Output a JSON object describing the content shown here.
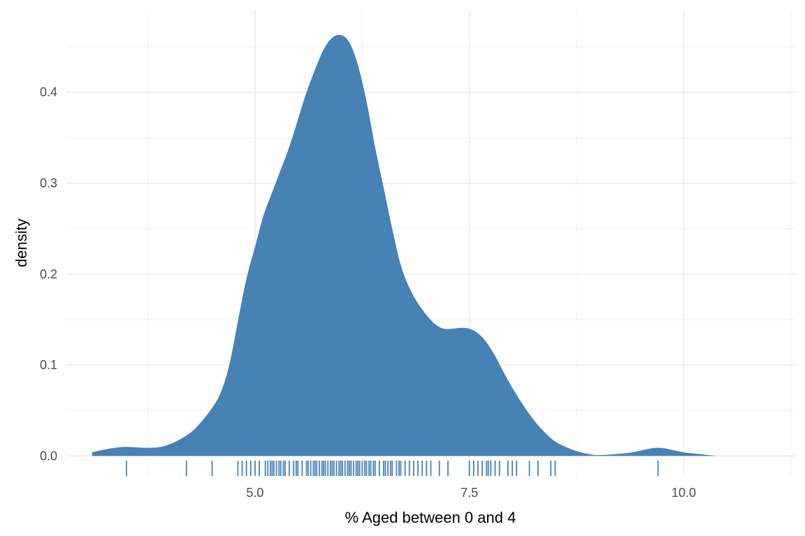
{
  "chart_data": {
    "type": "area",
    "subtype": "density-with-rug",
    "title": "",
    "xlabel": "% Aged between 0 and 4",
    "ylabel": "density",
    "xlim": [
      2.8,
      11.3
    ],
    "ylim": [
      -0.022,
      0.49
    ],
    "x_ticks": [
      {
        "value": 5.0,
        "label": "5.0"
      },
      {
        "value": 7.5,
        "label": "7.5"
      },
      {
        "value": 10.0,
        "label": "10.0"
      }
    ],
    "y_ticks": [
      {
        "value": 0.0,
        "label": "0.0"
      },
      {
        "value": 0.1,
        "label": "0.1"
      },
      {
        "value": 0.2,
        "label": "0.2"
      },
      {
        "value": 0.3,
        "label": "0.3"
      },
      {
        "value": 0.4,
        "label": "0.4"
      }
    ],
    "x_minor_grid": [
      3.75,
      6.25,
      8.75,
      11.25
    ],
    "y_minor_grid": [
      0.05,
      0.15,
      0.25,
      0.35,
      0.45
    ],
    "grid": true,
    "legend": "none",
    "colors": {
      "fill": "#4682b4",
      "grid": "#ebebeb",
      "minor_grid": "#f2f2f2",
      "rug": "#4682b4"
    },
    "density_x": [
      3.1,
      3.3,
      3.5,
      3.7,
      3.9,
      4.1,
      4.3,
      4.5,
      4.6,
      4.7,
      4.8,
      4.9,
      5.0,
      5.1,
      5.2,
      5.3,
      5.4,
      5.5,
      5.6,
      5.7,
      5.8,
      5.9,
      6.0,
      6.1,
      6.2,
      6.3,
      6.4,
      6.5,
      6.6,
      6.7,
      6.8,
      6.9,
      7.0,
      7.1,
      7.2,
      7.3,
      7.4,
      7.5,
      7.6,
      7.7,
      7.8,
      7.9,
      8.0,
      8.1,
      8.2,
      8.3,
      8.4,
      8.5,
      8.6,
      8.7,
      8.8,
      8.9,
      9.0,
      9.2,
      9.4,
      9.6,
      9.7,
      9.8,
      10.0,
      10.2,
      10.4
    ],
    "density_y": [
      0.004,
      0.008,
      0.01,
      0.009,
      0.01,
      0.017,
      0.03,
      0.053,
      0.07,
      0.1,
      0.148,
      0.195,
      0.23,
      0.265,
      0.29,
      0.315,
      0.34,
      0.37,
      0.4,
      0.425,
      0.447,
      0.46,
      0.463,
      0.455,
      0.43,
      0.39,
      0.34,
      0.295,
      0.25,
      0.21,
      0.185,
      0.168,
      0.155,
      0.145,
      0.14,
      0.14,
      0.141,
      0.14,
      0.135,
      0.125,
      0.11,
      0.092,
      0.075,
      0.06,
      0.046,
      0.034,
      0.024,
      0.016,
      0.011,
      0.007,
      0.004,
      0.002,
      0.001,
      0.002,
      0.004,
      0.008,
      0.009,
      0.008,
      0.004,
      0.002,
      0.0
    ],
    "rug_x": [
      3.5,
      4.2,
      4.5,
      4.8,
      4.85,
      4.9,
      4.95,
      5.0,
      5.05,
      5.12,
      5.15,
      5.18,
      5.2,
      5.22,
      5.25,
      5.28,
      5.3,
      5.33,
      5.35,
      5.4,
      5.45,
      5.48,
      5.5,
      5.55,
      5.6,
      5.62,
      5.65,
      5.68,
      5.7,
      5.72,
      5.75,
      5.78,
      5.8,
      5.82,
      5.85,
      5.88,
      5.9,
      5.92,
      5.95,
      5.98,
      6.0,
      6.02,
      6.05,
      6.08,
      6.1,
      6.12,
      6.15,
      6.18,
      6.2,
      6.22,
      6.25,
      6.28,
      6.3,
      6.33,
      6.35,
      6.38,
      6.4,
      6.45,
      6.5,
      6.52,
      6.55,
      6.58,
      6.6,
      6.65,
      6.68,
      6.7,
      6.75,
      6.8,
      6.85,
      6.9,
      6.95,
      7.0,
      7.05,
      7.15,
      7.25,
      7.5,
      7.55,
      7.6,
      7.65,
      7.7,
      7.72,
      7.75,
      7.8,
      7.85,
      7.95,
      8.0,
      8.05,
      8.2,
      8.3,
      8.45,
      8.5,
      9.7
    ]
  }
}
